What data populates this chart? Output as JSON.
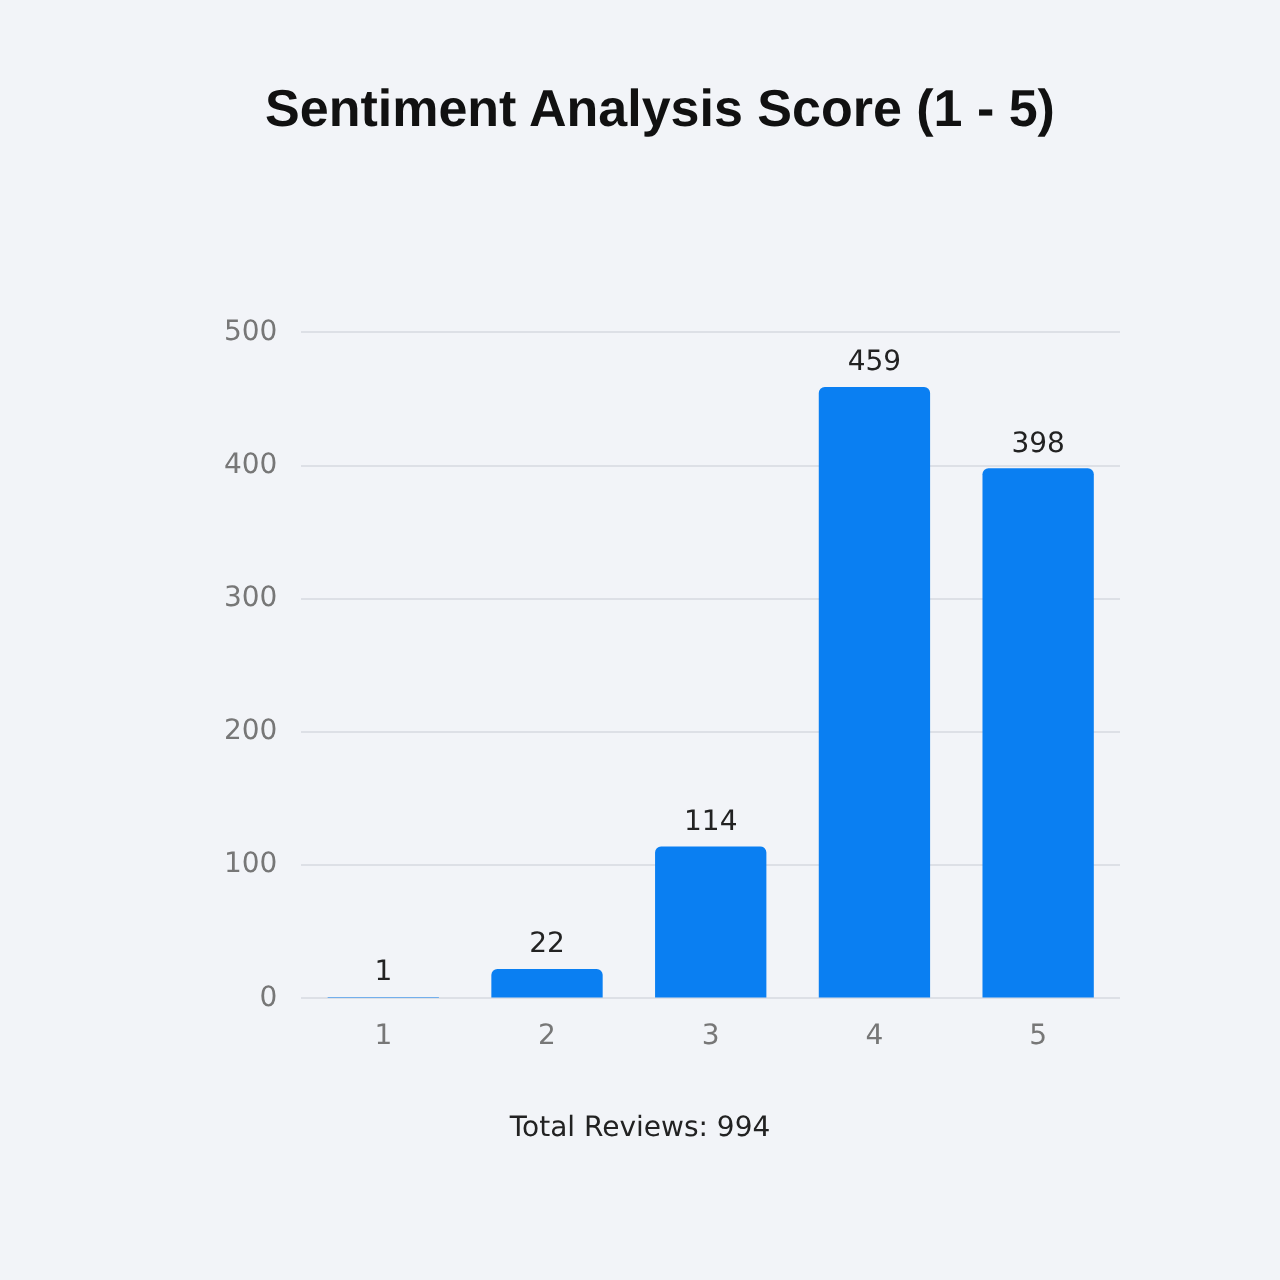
{
  "chart_data": {
    "type": "bar",
    "title": "Sentiment Analysis Score (1 - 5)",
    "categories": [
      "1",
      "2",
      "3",
      "4",
      "5"
    ],
    "values": [
      1,
      22,
      114,
      459,
      398
    ],
    "color": "#0a7ff2",
    "ylim": [
      0,
      500
    ],
    "yticks": [
      0,
      100,
      200,
      300,
      400,
      500
    ],
    "grid": "y",
    "data_labels": true,
    "legend": false,
    "annotations": [
      "Total Reviews: 994"
    ]
  }
}
